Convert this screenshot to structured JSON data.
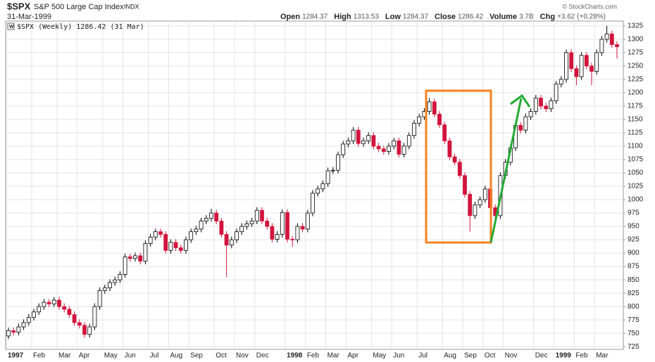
{
  "header": {
    "symbol": "$SPX",
    "name": "S&P 500 Large Cap Index",
    "exchange": "INDX",
    "date": "31-Mar-1999",
    "copyright": "© StockCharts.com",
    "quote": [
      [
        "Open",
        "1284.37"
      ],
      [
        "High",
        "1313.53"
      ],
      [
        "Low",
        "1284.37"
      ],
      [
        "Close",
        "1286.42"
      ],
      [
        "Volume",
        "3.7B"
      ],
      [
        "Chg",
        "+3.62 (+0.28%)"
      ]
    ]
  },
  "chart_data": {
    "type": "candlestick",
    "legend": "$SPX (Weekly) 1286.42 (31 Mar)",
    "categories": [
      "1997",
      null,
      null,
      null,
      null,
      "Feb",
      null,
      null,
      null,
      null,
      "Mar",
      null,
      null,
      null,
      "Apr",
      null,
      null,
      null,
      null,
      "May",
      null,
      null,
      null,
      "Jun",
      null,
      null,
      null,
      null,
      "Jul",
      null,
      null,
      null,
      "Aug",
      null,
      null,
      null,
      "Sep",
      null,
      null,
      null,
      null,
      "Oct",
      null,
      null,
      null,
      "Nov",
      null,
      null,
      null,
      "Dec",
      null,
      null,
      null,
      null,
      null,
      "1998",
      null,
      null,
      null,
      "Feb",
      null,
      null,
      null,
      "Mar",
      null,
      null,
      null,
      "Apr",
      null,
      null,
      null,
      null,
      "May",
      null,
      null,
      null,
      "Jun",
      null,
      null,
      null,
      null,
      "Jul",
      null,
      null,
      null,
      null,
      "Aug",
      null,
      null,
      null,
      "Sep",
      null,
      null,
      null,
      "Oct",
      null,
      null,
      null,
      "Nov",
      null,
      null,
      null,
      null,
      null,
      "Dec",
      null,
      null,
      null,
      "1999",
      null,
      null,
      null,
      "Feb",
      null,
      null,
      null,
      "Mar",
      null,
      null,
      null,
      null
    ],
    "open": [
      745,
      755,
      752,
      762,
      770,
      780,
      790,
      800,
      808,
      805,
      812,
      800,
      795,
      785,
      770,
      765,
      748,
      762,
      800,
      830,
      835,
      845,
      850,
      860,
      893,
      890,
      895,
      885,
      918,
      930,
      940,
      935,
      905,
      920,
      910,
      905,
      925,
      940,
      945,
      960,
      965,
      975,
      960,
      935,
      915,
      925,
      940,
      950,
      955,
      960,
      980,
      960,
      950,
      926,
      935,
      976,
      926,
      925,
      950,
      945,
      975,
      1012,
      1020,
      1030,
      1054,
      1055,
      1084,
      1104,
      1110,
      1130,
      1105,
      1110,
      1120,
      1100,
      1095,
      1090,
      1100,
      1110,
      1085,
      1100,
      1120,
      1143,
      1155,
      1165,
      1183,
      1160,
      1140,
      1110,
      1080,
      1070,
      1045,
      1010,
      970,
      990,
      1000,
      1020,
      985,
      970,
      1045,
      1070,
      1097,
      1139,
      1130,
      1155,
      1165,
      1190,
      1175,
      1170,
      1185,
      1216,
      1225,
      1275,
      1245,
      1230,
      1270,
      1250,
      1240,
      1275,
      1300,
      1310,
      1290
    ],
    "high": [
      761,
      761,
      768,
      776,
      786,
      796,
      806,
      814,
      814,
      818,
      818,
      806,
      801,
      791,
      776,
      771,
      768,
      806,
      836,
      841,
      851,
      856,
      866,
      899,
      899,
      901,
      901,
      924,
      936,
      946,
      946,
      941,
      926,
      926,
      916,
      931,
      946,
      951,
      966,
      971,
      983,
      981,
      966,
      941,
      931,
      946,
      956,
      961,
      966,
      986,
      986,
      966,
      956,
      941,
      982,
      982,
      932,
      956,
      956,
      981,
      1018,
      1026,
      1036,
      1060,
      1061,
      1090,
      1110,
      1116,
      1136,
      1136,
      1116,
      1126,
      1126,
      1106,
      1101,
      1106,
      1116,
      1116,
      1106,
      1126,
      1149,
      1161,
      1171,
      1190,
      1189,
      1166,
      1146,
      1116,
      1086,
      1076,
      1051,
      1016,
      996,
      1006,
      1026,
      1026,
      991,
      1051,
      1076,
      1103,
      1145,
      1145,
      1161,
      1171,
      1196,
      1196,
      1181,
      1191,
      1222,
      1231,
      1281,
      1281,
      1251,
      1276,
      1276,
      1256,
      1281,
      1306,
      1325,
      1316,
      1296
    ],
    "low": [
      739,
      746,
      746,
      756,
      764,
      774,
      784,
      794,
      799,
      799,
      794,
      789,
      779,
      764,
      759,
      742,
      742,
      756,
      794,
      824,
      829,
      839,
      844,
      854,
      884,
      884,
      879,
      879,
      912,
      924,
      929,
      899,
      899,
      904,
      899,
      899,
      919,
      934,
      939,
      954,
      959,
      954,
      929,
      855,
      909,
      919,
      934,
      944,
      949,
      954,
      954,
      944,
      920,
      920,
      929,
      920,
      912,
      919,
      939,
      939,
      969,
      1006,
      1014,
      1024,
      1048,
      1049,
      1078,
      1098,
      1104,
      1099,
      1099,
      1104,
      1094,
      1089,
      1084,
      1084,
      1094,
      1079,
      1079,
      1094,
      1114,
      1137,
      1149,
      1159,
      1154,
      1134,
      1104,
      1074,
      1064,
      1039,
      1004,
      940,
      964,
      984,
      994,
      979,
      959,
      964,
      1039,
      1064,
      1091,
      1124,
      1124,
      1149,
      1159,
      1169,
      1164,
      1164,
      1179,
      1210,
      1219,
      1239,
      1214,
      1224,
      1244,
      1214,
      1234,
      1269,
      1294,
      1284,
      1264
    ],
    "close": [
      755,
      752,
      762,
      770,
      780,
      790,
      800,
      808,
      805,
      812,
      800,
      795,
      785,
      770,
      765,
      748,
      762,
      800,
      830,
      835,
      845,
      850,
      860,
      893,
      890,
      895,
      885,
      918,
      930,
      940,
      935,
      905,
      920,
      910,
      905,
      925,
      940,
      945,
      960,
      965,
      975,
      960,
      935,
      915,
      925,
      940,
      950,
      955,
      960,
      980,
      960,
      950,
      926,
      935,
      976,
      926,
      925,
      950,
      945,
      975,
      1012,
      1020,
      1030,
      1054,
      1055,
      1084,
      1104,
      1110,
      1130,
      1105,
      1110,
      1120,
      1100,
      1095,
      1090,
      1100,
      1110,
      1085,
      1100,
      1120,
      1143,
      1155,
      1165,
      1183,
      1160,
      1140,
      1110,
      1080,
      1070,
      1045,
      1010,
      970,
      990,
      1000,
      1020,
      985,
      970,
      1045,
      1070,
      1097,
      1139,
      1130,
      1155,
      1165,
      1190,
      1175,
      1170,
      1185,
      1216,
      1225,
      1275,
      1245,
      1230,
      1270,
      1250,
      1240,
      1275,
      1300,
      1310,
      1290,
      1286
    ],
    "up_color": "#ffffff",
    "down_color": "#d2143c",
    "ylim": [
      720,
      1334
    ],
    "yticks": [
      725,
      750,
      775,
      800,
      825,
      850,
      875,
      900,
      925,
      950,
      975,
      1000,
      1025,
      1050,
      1075,
      1100,
      1125,
      1150,
      1175,
      1200,
      1225,
      1250,
      1275,
      1300,
      1325
    ],
    "grid": true
  }
}
